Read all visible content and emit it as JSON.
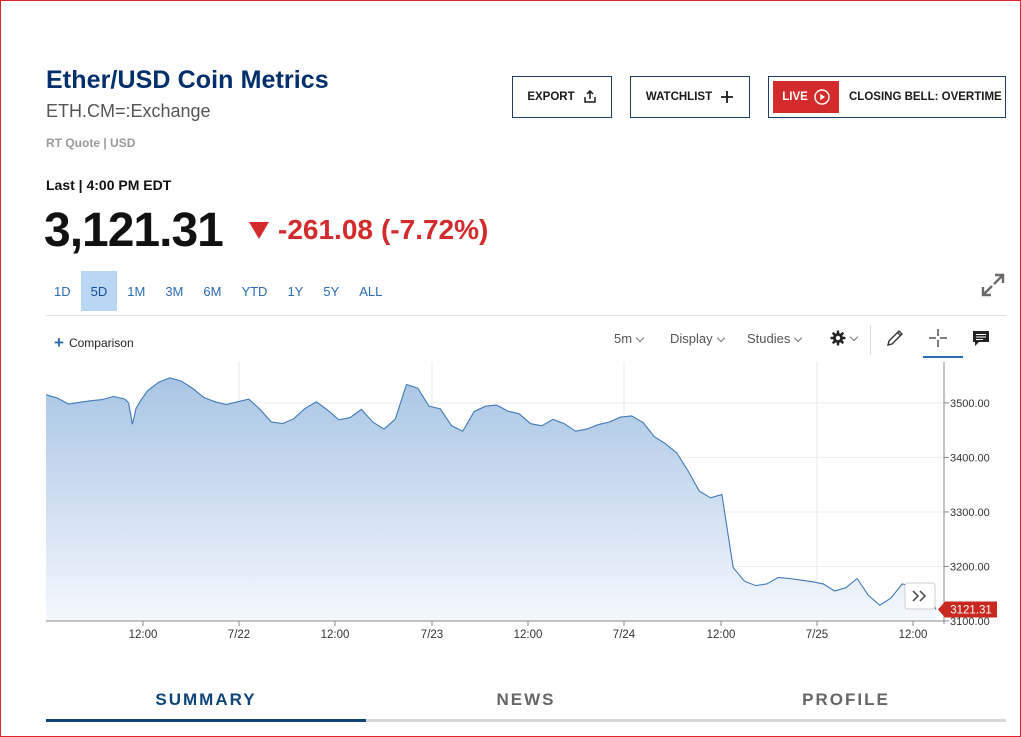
{
  "header": {
    "title": "Ether/USD Coin Metrics",
    "symbol": "ETH.CM=:Exchange",
    "quote_info": "RT Quote | USD"
  },
  "buttons": {
    "export": "EXPORT",
    "watchlist": "WATCHLIST",
    "live": "LIVE",
    "live_show": "CLOSING BELL: OVERTIME"
  },
  "quote": {
    "last_label": "Last | 4:00 PM EDT",
    "price": "3,121.31",
    "change": "-261.08",
    "change_pct": "(-7.72%)",
    "direction": "down",
    "down_color": "#d32b2b"
  },
  "ranges": [
    "1D",
    "5D",
    "1M",
    "3M",
    "6M",
    "YTD",
    "1Y",
    "5Y",
    "ALL"
  ],
  "active_range": "5D",
  "toolbar": {
    "comparison": "Comparison",
    "interval": "5m",
    "display": "Display",
    "studies": "Studies",
    "icons": [
      "gear-icon",
      "pencil-icon",
      "crosshair-icon",
      "comment-icon"
    ]
  },
  "tabs": [
    {
      "label": "SUMMARY",
      "active": true
    },
    {
      "label": "NEWS",
      "active": false
    },
    {
      "label": "PROFILE",
      "active": false
    }
  ],
  "chart_data": {
    "type": "area",
    "x_ticks": [
      "12:00",
      "7/22",
      "12:00",
      "7/23",
      "12:00",
      "7/24",
      "12:00",
      "7/25",
      "12:00"
    ],
    "y_ticks": [
      "3500.00",
      "3400.00",
      "3300.00",
      "3200.00",
      "3100.00"
    ],
    "ylim": [
      3100,
      3575
    ],
    "last_value_label": "3121.31",
    "line_color": "#3f7ab8",
    "grid": true,
    "series": [
      {
        "x": [
          0,
          0.3,
          0.6,
          0.9,
          1.2,
          1.5,
          1.8,
          2.1,
          2.2,
          2.3,
          2.4,
          2.5,
          2.7,
          3.0,
          3.3,
          3.6,
          3.9,
          4.2,
          4.5,
          4.8,
          5.1,
          5.4,
          5.7,
          6.0,
          6.3,
          6.6,
          6.9,
          7.2,
          7.5,
          7.8,
          8.1,
          8.4,
          8.7,
          9.0,
          9.3,
          9.6,
          9.9,
          10.2,
          10.5,
          10.8,
          11.1,
          11.4,
          11.7,
          12.0,
          12.3,
          12.6,
          12.9,
          13.2,
          13.5,
          13.8,
          14.1,
          14.4,
          14.7,
          15.0,
          15.3,
          15.6,
          15.9,
          16.2,
          16.5,
          16.8,
          17.1,
          17.4,
          17.7,
          18.0,
          18.3,
          18.6,
          18.9,
          19.2,
          19.5,
          19.8,
          20.1,
          20.4,
          20.7,
          21.0,
          21.3,
          21.6,
          21.9,
          22.2,
          22.5,
          22.8,
          23.1,
          23.4,
          23.7
        ],
        "values": [
          3515,
          3509,
          3498,
          3501,
          3504,
          3506,
          3512,
          3507,
          3500,
          3461,
          3490,
          3502,
          3522,
          3538,
          3546,
          3540,
          3527,
          3510,
          3502,
          3497,
          3502,
          3507,
          3488,
          3465,
          3462,
          3471,
          3490,
          3502,
          3487,
          3469,
          3473,
          3488,
          3465,
          3452,
          3470,
          3534,
          3527,
          3494,
          3489,
          3458,
          3448,
          3484,
          3494,
          3496,
          3485,
          3480,
          3462,
          3458,
          3470,
          3462,
          3448,
          3452,
          3460,
          3465,
          3474,
          3476,
          3464,
          3438,
          3425,
          3408,
          3375,
          3338,
          3326,
          3332,
          3198,
          3173,
          3165,
          3168,
          3180,
          3178,
          3175,
          3172,
          3168,
          3155,
          3161,
          3178,
          3147,
          3129,
          3142,
          3168,
          3162,
          3168,
          3121
        ]
      }
    ]
  }
}
